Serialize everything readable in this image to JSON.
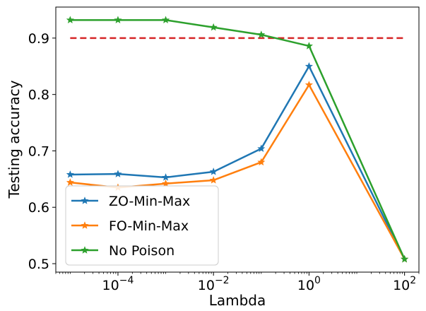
{
  "chart_data": {
    "type": "line",
    "xlabel": "Lambda",
    "ylabel": "Testing accuracy",
    "x_scale": "log",
    "x": [
      1e-05,
      0.0001,
      0.001,
      0.01,
      0.1,
      1,
      100
    ],
    "xlim": [
      5e-06,
      200
    ],
    "ylim": [
      0.485,
      0.955
    ],
    "x_ticks": [
      {
        "value": 0.0001,
        "base": "10",
        "exp": "−4"
      },
      {
        "value": 0.01,
        "base": "10",
        "exp": "−2"
      },
      {
        "value": 1,
        "base": "10",
        "exp": "0"
      },
      {
        "value": 100,
        "base": "10",
        "exp": "2"
      }
    ],
    "y_ticks": [
      {
        "value": 0.5,
        "label": "0.5"
      },
      {
        "value": 0.6,
        "label": "0.6"
      },
      {
        "value": 0.7,
        "label": "0.7"
      },
      {
        "value": 0.8,
        "label": "0.8"
      },
      {
        "value": 0.9,
        "label": "0.9"
      }
    ],
    "series": [
      {
        "name": "ZO-Min-Max",
        "color": "#1f77b4",
        "values": [
          0.658,
          0.659,
          0.653,
          0.663,
          0.704,
          0.85,
          0.508
        ]
      },
      {
        "name": "FO-Min-Max",
        "color": "#ff7f0e",
        "values": [
          0.644,
          0.635,
          0.642,
          0.648,
          0.68,
          0.817,
          0.508
        ]
      },
      {
        "name": "No Poison",
        "color": "#2ca02c",
        "values": [
          0.932,
          0.932,
          0.932,
          0.919,
          0.906,
          0.886,
          0.508
        ]
      }
    ],
    "reference_line": {
      "y": 0.9,
      "x_range": [
        1e-05,
        100
      ],
      "color": "#d62728",
      "style": "dashed"
    },
    "legend": {
      "placement": "lower-left"
    },
    "grid": false
  }
}
